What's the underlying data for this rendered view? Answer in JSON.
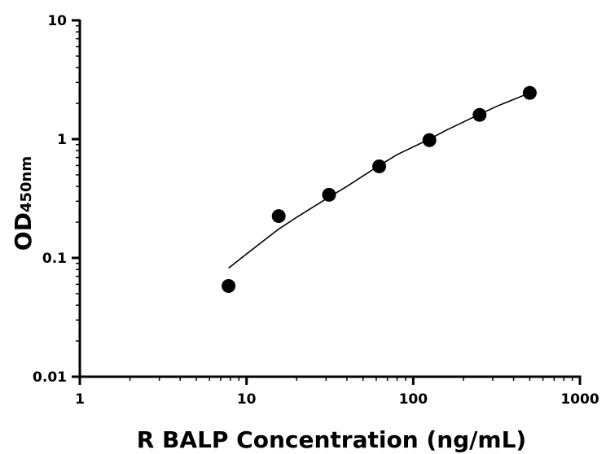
{
  "chart_data": {
    "type": "scatter",
    "x_scale": "log",
    "y_scale": "log",
    "xlim": [
      1,
      1000
    ],
    "ylim": [
      0.01,
      10
    ],
    "x_ticks": [
      1,
      10,
      100,
      1000
    ],
    "x_tick_labels": [
      "1",
      "10",
      "100",
      "1000"
    ],
    "y_ticks": [
      0.01,
      0.1,
      1,
      10
    ],
    "y_tick_labels": [
      "0.01",
      "0.1",
      "1",
      "10"
    ],
    "xlabel": "R BALP Concentration (ng/mL)",
    "ylabel_main": "OD",
    "ylabel_sub": "450nm",
    "grid": false,
    "series": [
      {
        "x": [
          7.8,
          15.6,
          31.25,
          62.5,
          125,
          250,
          500
        ],
        "y": [
          0.058,
          0.225,
          0.34,
          0.59,
          0.98,
          1.6,
          2.45
        ]
      }
    ],
    "fit_curve": {
      "x": [
        7.8,
        10,
        15.6,
        20,
        31.25,
        40,
        62.5,
        80,
        125,
        160,
        250,
        320,
        500
      ],
      "y": [
        0.082,
        0.108,
        0.175,
        0.22,
        0.325,
        0.4,
        0.6,
        0.74,
        1.0,
        1.2,
        1.62,
        1.9,
        2.45
      ]
    }
  }
}
